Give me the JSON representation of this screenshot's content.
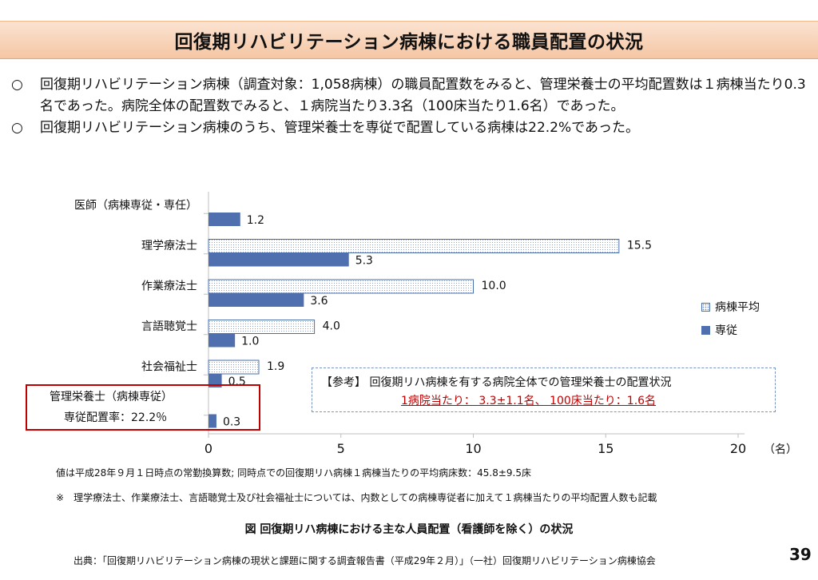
{
  "header": {
    "title": "回復期リハビリテーション病棟における職員配置の状況"
  },
  "bullets": [
    {
      "mark": "○",
      "text": "回復期リハビリテーション病棟（調査対象：1,058病棟）の職員配置数をみると、管理栄養士の平均配置数は１病棟当たり0.3名であった。病院全体の配置数でみると、１病院当たり3.3名（100床当たり1.6名）であった。"
    },
    {
      "mark": "○",
      "text": "回復期リハビリテーション病棟のうち、管理栄養士を専従で配置している病棟は22.2%であった。"
    }
  ],
  "chart_data": {
    "type": "bar",
    "orientation": "horizontal",
    "categories": [
      "医師（病棟専従・専任）",
      "理学療法士",
      "作業療法士",
      "言語聴覚士",
      "社会福祉士",
      "管理栄養士"
    ],
    "series": [
      {
        "name": "病棟平均",
        "values": [
          null,
          15.5,
          10.0,
          4.0,
          1.9,
          null
        ],
        "labels": [
          "",
          "15.5",
          "10.0",
          "4.0",
          "1.9",
          ""
        ],
        "color": "#ffffff",
        "pattern": "dotted"
      },
      {
        "name": "専従",
        "values": [
          1.2,
          5.3,
          3.6,
          1.0,
          0.5,
          0.3
        ],
        "labels": [
          "1.2",
          "5.3",
          "3.6",
          "1.0",
          "0.5",
          "0.3"
        ],
        "color": "#4f6fae"
      }
    ],
    "xlim": [
      0,
      20
    ],
    "xticks": [
      "0",
      "5",
      "10",
      "15",
      "20"
    ],
    "x_unit": "（名）",
    "legend": "right",
    "grid": false
  },
  "highlight": {
    "line1": "管理栄養士（病棟専従）",
    "line2": "専従配置率：22.2％"
  },
  "reference": {
    "line1": "【参考】 回復期リハ病棟を有する病院全体での管理栄養士の配置状況",
    "line2": "1病院当たり： 3.3±1.1名、 100床当たり：1.6名"
  },
  "notes": {
    "note1": "値は平成28年９月１日時点の常勤換算数; 同時点での回復期リハ病棟１病棟当たりの平均病床数：45.8±9.5床",
    "note2_mark": "※",
    "note2": "理学療法士、作業療法士、言語聴覚士及び社会福祉士については、内数としての病棟専従者に加えて１病棟当たりの平均配置人数も記載"
  },
  "caption": "図 回復期リハ病棟における主な人員配置（看護師を除く）の状況",
  "source": "出典：「回復期リハビリテーション病棟の現状と課題に関する調査報告書（平成29年２月）」（一社）回復期リハビリテーション病棟協会",
  "page_number": "39",
  "colors": {
    "title_bg": "#f5c6a4",
    "bar_dedicated": "#4f6fae",
    "bar_avg_border": "#4a6eab",
    "highlight_border": "#c00000",
    "reference_text": "#c00000"
  }
}
